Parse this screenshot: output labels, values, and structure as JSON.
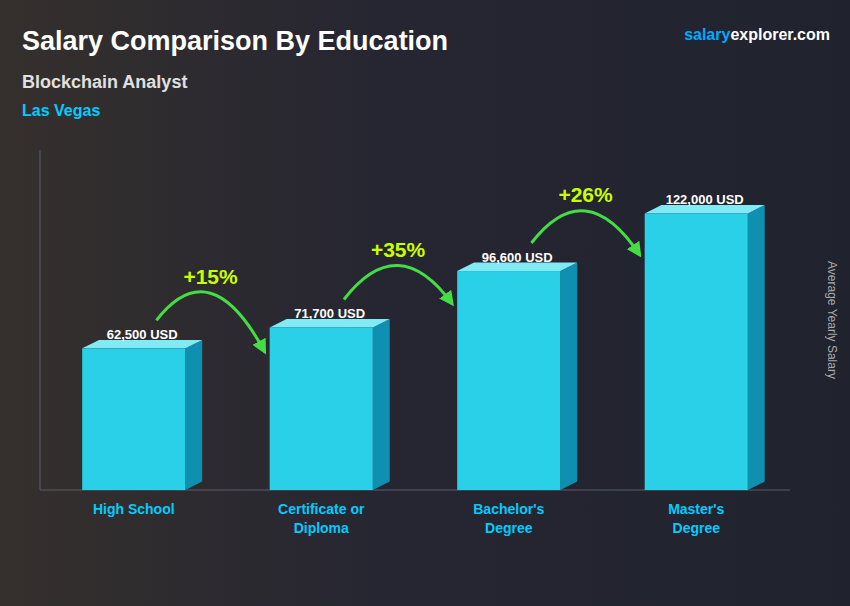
{
  "chart_data": {
    "type": "bar",
    "title": "Salary Comparison By Education",
    "subtitle": "Blockchain Analyst",
    "city": "Las Vegas",
    "source": [
      "salary",
      "explorer.com"
    ],
    "ylabel": "Average Yearly Salary",
    "categories": [
      "High School",
      "Certificate or\nDiploma",
      "Bachelor's\nDegree",
      "Master's\nDegree"
    ],
    "values": [
      62500,
      71700,
      96600,
      122000
    ],
    "value_labels": [
      "62,500 USD",
      "71,700 USD",
      "96,600 USD",
      "122,000 USD"
    ],
    "data_labels": true,
    "annotations": [
      "+15%",
      "+35%",
      "+26%"
    ],
    "color": "#29d0e8",
    "ylim": [
      0,
      150000
    ],
    "tick_labels": "x",
    "grid": false
  }
}
